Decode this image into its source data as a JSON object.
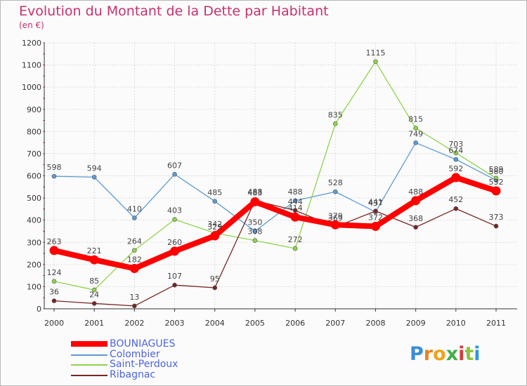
{
  "chart_data": {
    "type": "line",
    "title": "Evolution du Montant de la Dette par Habitant",
    "subtitle": "(en €)",
    "x": [
      "2000",
      "2001",
      "2002",
      "2003",
      "2004",
      "2005",
      "2006",
      "2007",
      "2008",
      "2009",
      "2010",
      "2011"
    ],
    "ylim": [
      0,
      1200
    ],
    "yticks": [
      0,
      100,
      200,
      300,
      400,
      500,
      600,
      700,
      800,
      900,
      1000,
      1100,
      1200
    ],
    "grid": true,
    "legend_position": "bottom-left",
    "series": [
      {
        "name": "BOUNIAGUES",
        "color": "#ff0000",
        "values": [
          263,
          221,
          182,
          260,
          329,
          483,
          414,
          379,
          372,
          488,
          592,
          532
        ]
      },
      {
        "name": "Colombier",
        "color": "#5b9bd5",
        "values": [
          598,
          594,
          410,
          607,
          485,
          350,
          488,
          528,
          437,
          749,
          674,
          580
        ]
      },
      {
        "name": "Saint-Perdoux",
        "color": "#8fd34c",
        "values": [
          124,
          85,
          264,
          403,
          342,
          308,
          272,
          835,
          1115,
          815,
          703,
          589
        ]
      },
      {
        "name": "Ribagnac",
        "color": "#7a2424",
        "values": [
          36,
          24,
          13,
          107,
          95,
          488,
          444,
          369,
          441,
          368,
          452,
          373
        ]
      }
    ]
  },
  "logo": {
    "letters": [
      "P",
      "r",
      "o",
      "x",
      "i",
      "t",
      "i"
    ]
  }
}
